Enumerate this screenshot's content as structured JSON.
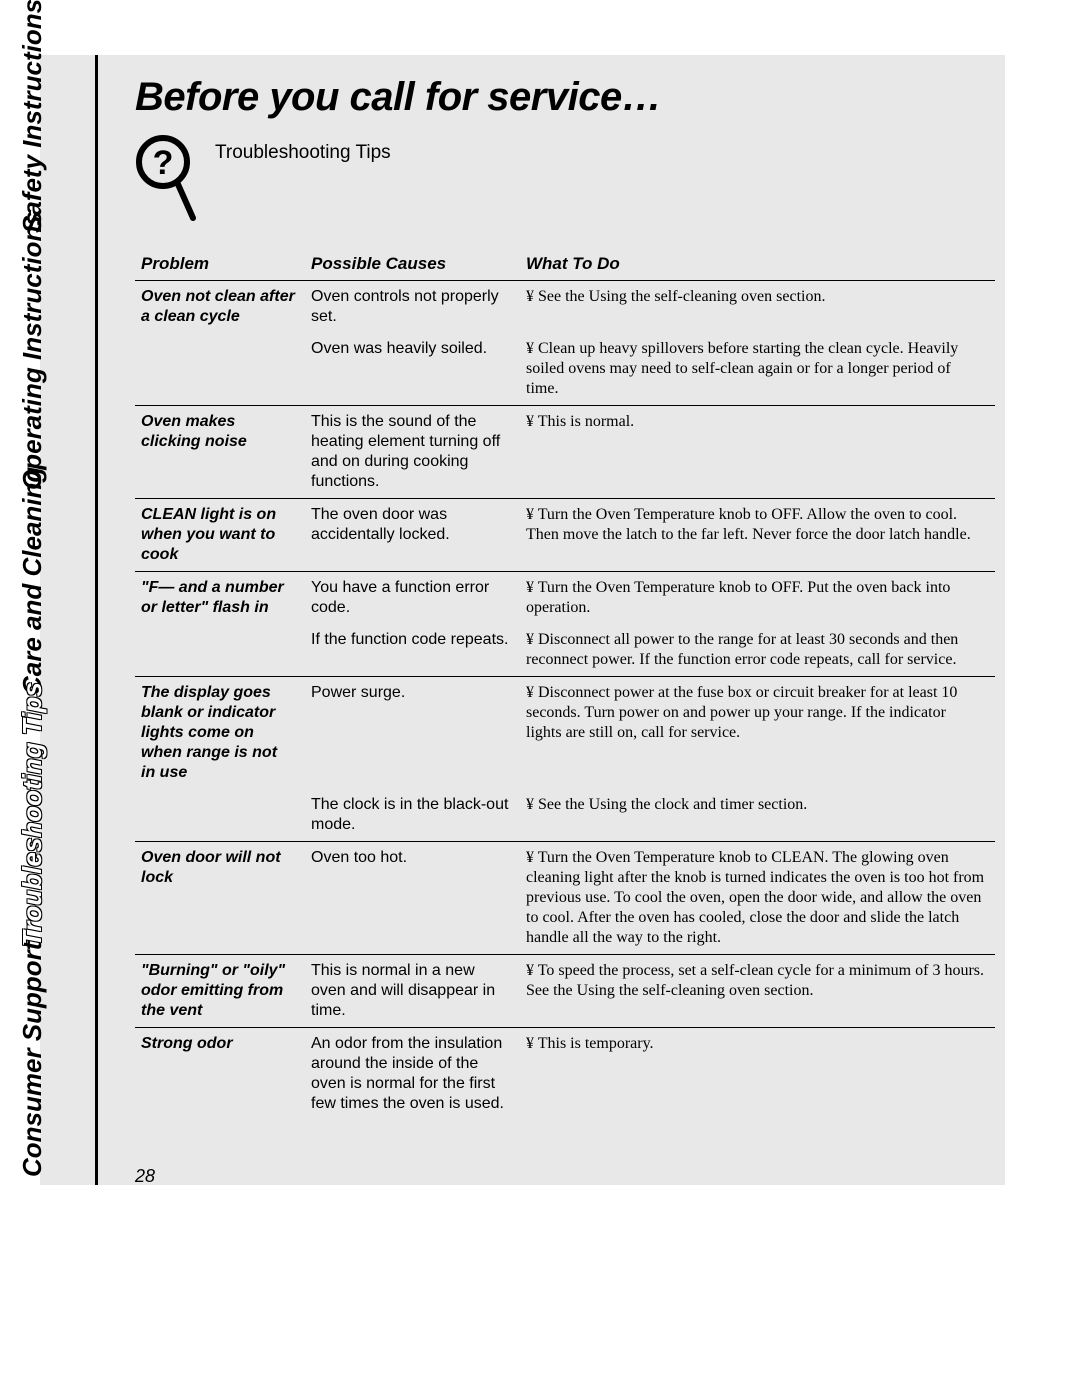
{
  "page_number": "28",
  "title": "Before you call for service…",
  "subhead": "Troubleshooting Tips",
  "sidebar": [
    "Safety Instructions",
    "Operating Instructions",
    "Care and Cleaning",
    "Troubleshooting Tips",
    "Consumer Support"
  ],
  "headers": {
    "problem": "Problem",
    "causes": "Possible Causes",
    "todo": "What To Do"
  },
  "bullet": "¥ ",
  "rows": [
    {
      "problem": "Oven not clean after a clean cycle",
      "cause": "Oven controls not properly set.",
      "todo": "See the Using the self-cleaning oven section.",
      "top_border": false
    },
    {
      "problem": "",
      "cause": "Oven was heavily soiled.",
      "todo": "Clean up heavy spillovers before starting the clean cycle. Heavily soiled ovens may need to self-clean again or for a longer period of time.",
      "top_border": false
    },
    {
      "problem": "Oven makes clicking noise",
      "cause": "This is the sound of the heating element turning off and on during cooking functions.",
      "todo": "This is normal.",
      "top_border": true
    },
    {
      "problem": "CLEAN light is on when you want to cook",
      "cause": "The oven door was accidentally locked.",
      "todo": "Turn the Oven Temperature knob to OFF. Allow the oven to cool. Then move the latch to the far left. Never force the door latch handle.",
      "top_border": true
    },
    {
      "problem": "\"F— and a number or letter\" flash in",
      "cause": "You have a function error code.",
      "todo": "Turn the Oven Temperature knob to OFF. Put the oven back into operation.",
      "top_border": true
    },
    {
      "problem": "",
      "cause": "If the function code repeats.",
      "todo": "Disconnect all power to the range for at least 30 seconds and then reconnect power. If the function error code repeats, call for service.",
      "top_border": false
    },
    {
      "problem": "The display goes blank or indicator lights come on when range is not in use",
      "cause": "Power surge.",
      "todo": "Disconnect power at the fuse box or circuit breaker for at least 10 seconds. Turn power on and power up your range. If the indicator lights are still on, call for service.",
      "top_border": true
    },
    {
      "problem": "",
      "cause": "The clock is in the black-out mode.",
      "todo": "See the Using the clock and timer section.",
      "top_border": false
    },
    {
      "problem": "Oven door will not lock",
      "cause": "Oven too hot.",
      "todo": "Turn the Oven Temperature knob to CLEAN. The glowing oven cleaning light after the knob is turned indicates the oven is too hot from previous use. To cool the oven, open the door wide, and allow the oven to cool. After the oven has cooled, close the door and slide the latch handle all the way to the right.",
      "top_border": true
    },
    {
      "problem": "\"Burning\" or \"oily\" odor emitting from the vent",
      "cause": "This is normal in a new oven and will disappear in time.",
      "todo": "To speed the process, set a self-clean cycle for a minimum of 3 hours. See the Using the self-cleaning oven section.",
      "top_border": true
    },
    {
      "problem": "Strong odor",
      "cause": "An odor from the insulation around the inside of the oven is normal for the first few times the oven is used.",
      "todo": "This is temporary.",
      "top_border": true
    }
  ]
}
